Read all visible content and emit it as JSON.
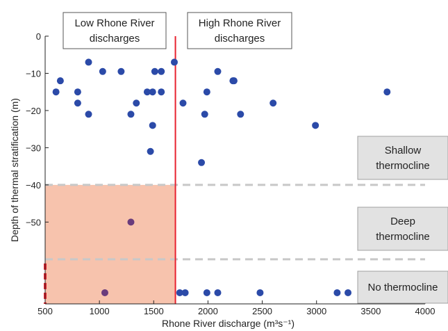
{
  "colors": {
    "point": "#2b4aa8",
    "point_in_shade": "#6a3c7c",
    "shade": "#f7c3ad",
    "red_line": "#e8212e",
    "dashed": "#c8c8c8",
    "box_fill": "#e2e2e2",
    "box_stroke": "#a0a0a0",
    "axis": "#222222"
  },
  "annotations": {
    "low_discharge": [
      "Low Rhone River",
      "discharges"
    ],
    "high_discharge": [
      "High Rhone River",
      "discharges"
    ],
    "shallow": [
      "Shallow",
      "thermocline"
    ],
    "deep": [
      "Deep",
      "thermocline"
    ],
    "none": [
      "No thermocline"
    ]
  },
  "chart_data": {
    "type": "scatter",
    "title": "",
    "xlabel": "Rhone River discharge (m³s⁻¹)",
    "ylabel": "Depth of thermal stratification (m)",
    "xlim": [
      500,
      4000
    ],
    "ylim": [
      -72,
      0
    ],
    "x_ticks": [
      500,
      1000,
      1500,
      2000,
      2500,
      3000,
      3500,
      4000
    ],
    "y_ticks": [
      0,
      -10,
      -20,
      -30,
      -40,
      -50
    ],
    "threshold_discharge": 1700,
    "threshold_depths": [
      -40,
      -60
    ],
    "no_thermocline_value": -69,
    "grid": false,
    "points": [
      {
        "x": 600,
        "y": -15
      },
      {
        "x": 640,
        "y": -12
      },
      {
        "x": 800,
        "y": -15
      },
      {
        "x": 800,
        "y": -18
      },
      {
        "x": 900,
        "y": -7
      },
      {
        "x": 900,
        "y": -21
      },
      {
        "x": 1030,
        "y": -9.5
      },
      {
        "x": 1200,
        "y": -9.5
      },
      {
        "x": 1290,
        "y": -21
      },
      {
        "x": 1340,
        "y": -18
      },
      {
        "x": 1440,
        "y": -15
      },
      {
        "x": 1490,
        "y": -15
      },
      {
        "x": 1510,
        "y": -9.5
      },
      {
        "x": 1570,
        "y": -9.5
      },
      {
        "x": 1570,
        "y": -15
      },
      {
        "x": 1490,
        "y": -24
      },
      {
        "x": 1470,
        "y": -31
      },
      {
        "x": 1690,
        "y": -7
      },
      {
        "x": 1770,
        "y": -18
      },
      {
        "x": 1940,
        "y": -34
      },
      {
        "x": 1970,
        "y": -21
      },
      {
        "x": 1990,
        "y": -15
      },
      {
        "x": 2090,
        "y": -9.5
      },
      {
        "x": 2230,
        "y": -12
      },
      {
        "x": 2240,
        "y": -12
      },
      {
        "x": 2300,
        "y": -21
      },
      {
        "x": 2600,
        "y": -18
      },
      {
        "x": 2990,
        "y": -24
      },
      {
        "x": 3650,
        "y": -15
      },
      {
        "x": 1290,
        "y": -50
      },
      {
        "x": 1050,
        "y": -69
      },
      {
        "x": 1740,
        "y": -69
      },
      {
        "x": 1790,
        "y": -69
      },
      {
        "x": 1990,
        "y": -69
      },
      {
        "x": 2090,
        "y": -69
      },
      {
        "x": 2480,
        "y": -69
      },
      {
        "x": 3190,
        "y": -69
      },
      {
        "x": 3290,
        "y": -69
      }
    ]
  }
}
